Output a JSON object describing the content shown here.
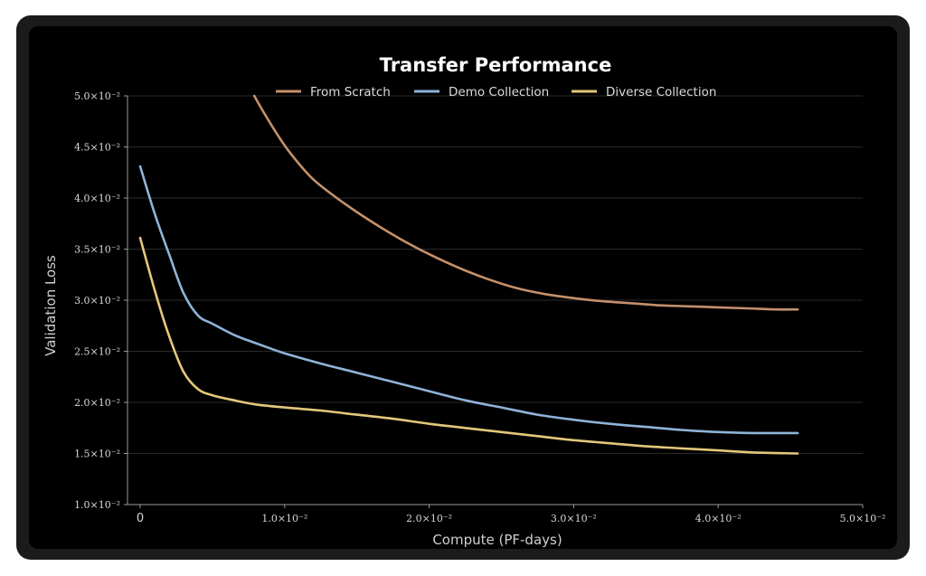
{
  "chart_data": {
    "type": "line",
    "title": "Transfer Performance",
    "xlabel": "Compute (PF-days)",
    "ylabel": "Validation Loss",
    "xlim": [
      0,
      0.05
    ],
    "ylim": [
      0.01,
      0.05
    ],
    "grid": "horizontal",
    "legend": "top-center",
    "x_ticks": [
      {
        "value": 0,
        "label": "0"
      },
      {
        "value": 0.01,
        "label": "1.0×10⁻²"
      },
      {
        "value": 0.02,
        "label": "2.0×10⁻²"
      },
      {
        "value": 0.03,
        "label": "3.0×10⁻²"
      },
      {
        "value": 0.04,
        "label": "4.0×10⁻²"
      },
      {
        "value": 0.05,
        "label": "5.0×10⁻²"
      }
    ],
    "y_ticks": [
      {
        "value": 0.01,
        "label": "1.0×10⁻²"
      },
      {
        "value": 0.015,
        "label": "1.5×10⁻²"
      },
      {
        "value": 0.02,
        "label": "2.0×10⁻²"
      },
      {
        "value": 0.025,
        "label": "2.5×10⁻²"
      },
      {
        "value": 0.03,
        "label": "3.0×10⁻²"
      },
      {
        "value": 0.035,
        "label": "3.5×10⁻²"
      },
      {
        "value": 0.04,
        "label": "4.0×10⁻²"
      },
      {
        "value": 0.045,
        "label": "4.5×10⁻²"
      },
      {
        "value": 0.05,
        "label": "5.0×10⁻²"
      }
    ],
    "series": [
      {
        "name": "From Scratch",
        "color": "#c4916b",
        "x": [
          0.0079,
          0.0085,
          0.0095,
          0.0105,
          0.012,
          0.014,
          0.016,
          0.018,
          0.02,
          0.022,
          0.024,
          0.026,
          0.028,
          0.03,
          0.032,
          0.034,
          0.036,
          0.038,
          0.04,
          0.042,
          0.044,
          0.0455
        ],
        "y": [
          0.05,
          0.0485,
          0.0462,
          0.0442,
          0.0418,
          0.0396,
          0.0377,
          0.036,
          0.0345,
          0.0332,
          0.0321,
          0.0312,
          0.0306,
          0.0302,
          0.0299,
          0.0297,
          0.0295,
          0.0294,
          0.0293,
          0.0292,
          0.0291,
          0.0291
        ]
      },
      {
        "name": "Demo Collection",
        "color": "#8fb3d8",
        "x": [
          0,
          0.001,
          0.002,
          0.003,
          0.004,
          0.005,
          0.0065,
          0.008,
          0.01,
          0.0125,
          0.015,
          0.0175,
          0.02,
          0.0225,
          0.025,
          0.0275,
          0.03,
          0.0325,
          0.035,
          0.0375,
          0.04,
          0.0425,
          0.0455
        ],
        "y": [
          0.0431,
          0.0385,
          0.0345,
          0.0307,
          0.0285,
          0.0277,
          0.0266,
          0.0258,
          0.0248,
          0.0238,
          0.0229,
          0.022,
          0.0211,
          0.0202,
          0.0195,
          0.0188,
          0.0183,
          0.0179,
          0.0176,
          0.0173,
          0.0171,
          0.017,
          0.017
        ]
      },
      {
        "name": "Diverse Collection",
        "color": "#e3c77a",
        "x": [
          0,
          0.001,
          0.002,
          0.003,
          0.004,
          0.005,
          0.0065,
          0.008,
          0.01,
          0.0125,
          0.015,
          0.0175,
          0.02,
          0.0225,
          0.025,
          0.0275,
          0.03,
          0.0325,
          0.035,
          0.0375,
          0.04,
          0.0425,
          0.0455
        ],
        "y": [
          0.0361,
          0.031,
          0.0265,
          0.023,
          0.0213,
          0.0207,
          0.0202,
          0.0198,
          0.0195,
          0.0192,
          0.0188,
          0.0184,
          0.0179,
          0.0175,
          0.0171,
          0.0167,
          0.0163,
          0.016,
          0.0157,
          0.0155,
          0.0153,
          0.0151,
          0.015
        ]
      }
    ]
  }
}
